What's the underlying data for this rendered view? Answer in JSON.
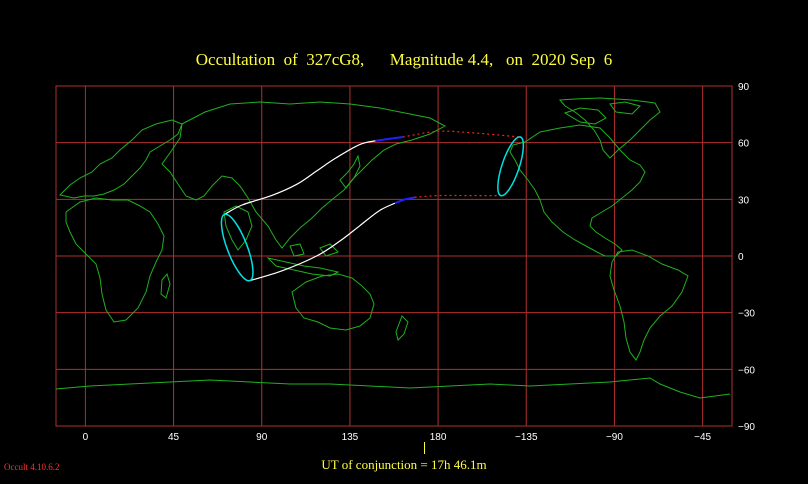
{
  "title": "Occultation  of  327cG8,      Magnitude 4.4,   on  2020 Sep  6",
  "map": {
    "projection": "equirectangular",
    "lon_min": -15,
    "lon_max": 330,
    "lat_min": -90,
    "lat_max": 90,
    "x_ticks": [
      {
        "lon": 0,
        "label": "0"
      },
      {
        "lon": 45,
        "label": "45"
      },
      {
        "lon": 90,
        "label": "90"
      },
      {
        "lon": 135,
        "label": "135"
      },
      {
        "lon": 180,
        "label": "180"
      },
      {
        "lon": 225,
        "label": "−135"
      },
      {
        "lon": 270,
        "label": "−90"
      },
      {
        "lon": 315,
        "label": "−45"
      }
    ],
    "y_ticks": [
      {
        "lat": 90,
        "label": "90"
      },
      {
        "lat": 60,
        "label": "60"
      },
      {
        "lat": 30,
        "label": "30"
      },
      {
        "lat": 0,
        "label": "0"
      },
      {
        "lat": -30,
        "label": "−30"
      },
      {
        "lat": -60,
        "label": "−60"
      },
      {
        "lat": -90,
        "label": "−90"
      }
    ],
    "colors": {
      "grid": "#b03030",
      "coast": "#20b020",
      "path": "#ffffff",
      "limb": "#00e0e0",
      "daylight": "#2020ff",
      "extension": "#ff2020"
    },
    "north_limit": [
      [
        71,
        22
      ],
      [
        80,
        27
      ],
      [
        95,
        32
      ],
      [
        108,
        38
      ],
      [
        118,
        45
      ],
      [
        128,
        52
      ],
      [
        140,
        59
      ],
      [
        148,
        61
      ]
    ],
    "south_limit": [
      [
        84,
        -13
      ],
      [
        100,
        -8
      ],
      [
        118,
        0
      ],
      [
        130,
        8
      ],
      [
        140,
        16
      ],
      [
        150,
        24
      ],
      [
        158,
        28
      ]
    ],
    "north_daylight": [
      [
        148,
        61
      ],
      [
        155,
        62
      ],
      [
        162,
        63
      ]
    ],
    "south_daylight": [
      [
        158,
        28
      ],
      [
        163,
        30
      ],
      [
        168,
        31
      ]
    ],
    "north_extension": [
      [
        162,
        63
      ],
      [
        180,
        66
      ],
      [
        200,
        65
      ],
      [
        222,
        63
      ]
    ],
    "south_extension": [
      [
        168,
        31
      ],
      [
        180,
        32
      ],
      [
        195,
        32
      ],
      [
        212,
        32
      ]
    ],
    "limb_west": [
      [
        71,
        22
      ],
      [
        83,
        2
      ],
      [
        84,
        -13
      ]
    ],
    "limb_east": [
      [
        212,
        32
      ],
      [
        225,
        50
      ],
      [
        222,
        63
      ]
    ],
    "ut_conjunction_lon": 173
  },
  "ut_label": "UT of conjunction = 17h 46.1m",
  "version": "Occult 4.10.6.2"
}
